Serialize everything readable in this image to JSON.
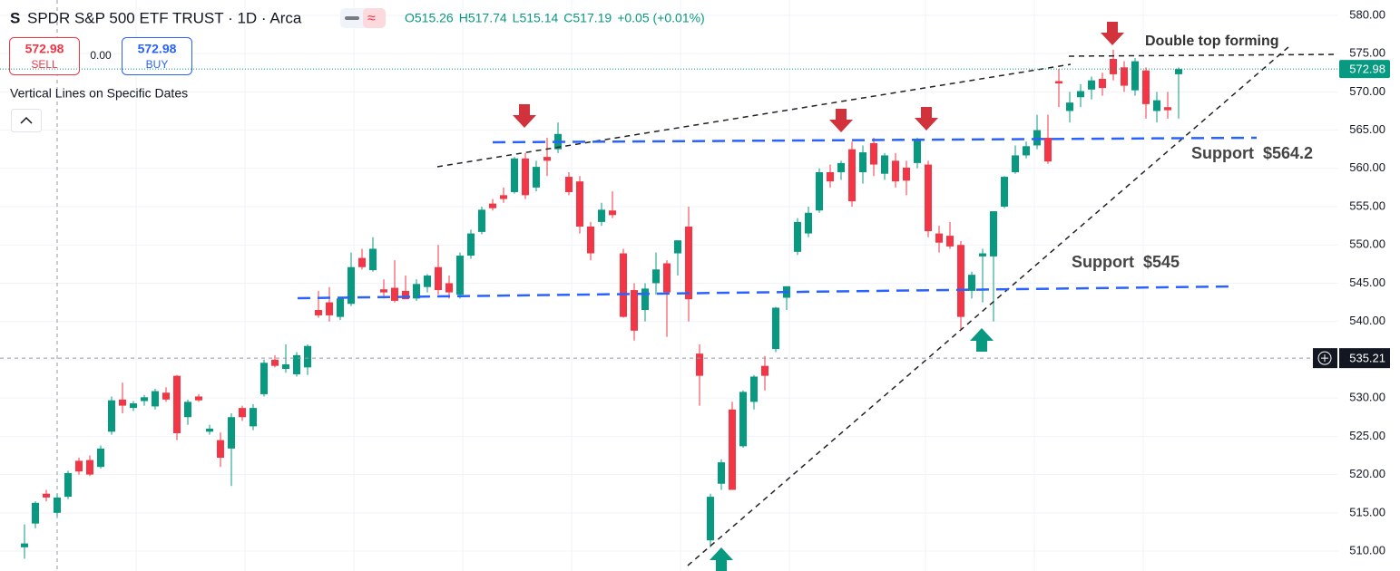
{
  "chart_data": {
    "type": "candlestick",
    "title": "SPDR S&P 500 ETF TRUST · 1D · Arca",
    "legend_values": [
      "O515.26",
      "H517.74",
      "L515.14",
      "C517.19",
      "+0.05 (+0.01%)"
    ],
    "up_color": "#089981",
    "down_color": "#f23645",
    "open": [
      510.5,
      513.6,
      517.5,
      515,
      517.1,
      521.8,
      521.9,
      521,
      525.6,
      529.8,
      528.7,
      529.6,
      528.9,
      530.7,
      532.9,
      527.5,
      530.2,
      525.6,
      524.5,
      523.4,
      528.7,
      526.3,
      530.5,
      535,
      533.8,
      533.1,
      534,
      541.5,
      542.5,
      540.6,
      542.3,
      548.3,
      546.7,
      544.2,
      544.4,
      544,
      543,
      544.5,
      547.1,
      545,
      543.5,
      548.6,
      551.7,
      555.4,
      556.5,
      556.9,
      561.3,
      557.5,
      561.5,
      562.5,
      558.9,
      558.3,
      552.4,
      553,
      554.5,
      548.9,
      544.1,
      541.5,
      545,
      547.6,
      548.9,
      552.4,
      535.8,
      511.4,
      518.8,
      528.5,
      523.7,
      529.5,
      534.2,
      536.4,
      543.1,
      549.1,
      551.5,
      554.5,
      559.5,
      559.5,
      562.5,
      559.5,
      563.3,
      559.3,
      561,
      560.1,
      560.7,
      560.5,
      551.5,
      551.2,
      550,
      544,
      548.5,
      548.5,
      555,
      559.5,
      561.7,
      563,
      564,
      571.4,
      567.5,
      569.3,
      570.3,
      571.7,
      574.3,
      573.2,
      570.2,
      572.8,
      567.5,
      568,
      572.3
    ],
    "high": [
      513.5,
      516.5,
      518,
      517.5,
      520.5,
      522.2,
      522.5,
      523.8,
      530.2,
      532,
      529.6,
      530.4,
      531.2,
      531.4,
      533,
      529.8,
      530.5,
      526.5,
      525.5,
      528,
      529,
      529.2,
      535,
      535.6,
      537,
      536,
      537,
      544,
      544.5,
      543.2,
      549,
      549.5,
      551,
      545.5,
      548,
      546,
      545.5,
      546.2,
      550,
      546,
      549,
      552,
      555,
      556,
      557.5,
      561.5,
      562,
      561,
      564,
      566,
      559.5,
      559,
      553,
      555.5,
      557,
      549.5,
      545,
      545,
      549,
      548,
      550.6,
      555,
      537,
      517.5,
      522,
      529.5,
      531,
      533,
      535.5,
      541.9,
      544.6,
      553.5,
      555,
      560,
      560.5,
      561,
      563.5,
      563,
      564,
      562,
      562,
      561,
      564,
      561,
      552.5,
      553,
      550.5,
      546.5,
      549.5,
      554.4,
      559,
      563,
      563.5,
      567,
      567,
      573,
      570,
      571,
      572,
      572.5,
      575.5,
      574,
      574.4,
      573.2,
      570,
      570,
      573.2
    ],
    "low": [
      509,
      513,
      516.5,
      514.5,
      516.8,
      520,
      519.8,
      520.8,
      525.2,
      528,
      528.3,
      529,
      528.5,
      529.5,
      524.5,
      526.5,
      529.5,
      525.2,
      521,
      518.5,
      527,
      525.8,
      530.2,
      534,
      533.3,
      532.8,
      533,
      540.5,
      540,
      540.2,
      542,
      546.8,
      546.5,
      543,
      542.5,
      543,
      542.7,
      543.8,
      543.5,
      543,
      543,
      548.2,
      551.4,
      554.5,
      555.5,
      556.7,
      556,
      557,
      559,
      562,
      556.5,
      551.5,
      548,
      552.5,
      553.5,
      540.5,
      537.5,
      540,
      543.5,
      538,
      546,
      540,
      529,
      510.5,
      518,
      518,
      523.5,
      528.5,
      531,
      536,
      541.5,
      548.7,
      551,
      554.2,
      557.5,
      558.5,
      555,
      558,
      559,
      558.5,
      557.5,
      556.5,
      560,
      551,
      549,
      549.5,
      539,
      543,
      542.5,
      540,
      554.8,
      559.3,
      561.3,
      562.5,
      560.6,
      568,
      566,
      568,
      569,
      569.5,
      571.5,
      570,
      569.5,
      566.5,
      566,
      566.5,
      566.5
    ],
    "close": [
      511,
      516.3,
      517,
      517,
      520.2,
      520.4,
      520,
      523.4,
      529.7,
      529,
      529.3,
      530.1,
      530.9,
      529.8,
      525.4,
      529.5,
      529.7,
      526,
      522.2,
      527.5,
      527.5,
      528.7,
      534.6,
      534.2,
      534.4,
      535.6,
      536.8,
      540.8,
      540.8,
      543,
      547.1,
      547.1,
      549.5,
      543.8,
      542.7,
      542.9,
      544.9,
      546,
      544.1,
      543.8,
      548.6,
      551.5,
      554.6,
      554.8,
      556,
      561.3,
      556.5,
      560.2,
      561,
      564.5,
      556.9,
      552.4,
      548.9,
      554.6,
      553.9,
      540.6,
      538.8,
      544.3,
      546.8,
      543.8,
      550.6,
      542.9,
      532.9,
      517.1,
      521.6,
      518,
      530.8,
      532.8,
      532.9,
      541.8,
      544.6,
      553,
      554.2,
      559.5,
      558.3,
      560.7,
      555.7,
      562.1,
      560.5,
      561.7,
      558.3,
      558.4,
      563.7,
      551.8,
      550.3,
      549.8,
      540.6,
      546.1,
      548.9,
      554.4,
      558.9,
      561.7,
      562.9,
      565,
      560.9,
      571.1,
      568.6,
      570.1,
      571.5,
      570.5,
      572.3,
      570.8,
      574,
      568.4,
      568.9,
      567.6,
      572.98
    ],
    "ylim": [
      507.4,
      582.0
    ],
    "yticks": [
      {
        "value": 510,
        "label": "510.00"
      },
      {
        "value": 515,
        "label": "515.00"
      },
      {
        "value": 520,
        "label": "520.00"
      },
      {
        "value": 525,
        "label": "525.00"
      },
      {
        "value": 530,
        "label": "530.00"
      },
      {
        "value": 535,
        "label": "535.00"
      },
      {
        "value": 540,
        "label": "540.00"
      },
      {
        "value": 545,
        "label": "545.00"
      },
      {
        "value": 550,
        "label": "550.00"
      },
      {
        "value": 555,
        "label": "555.00"
      },
      {
        "value": 560,
        "label": "560.00"
      },
      {
        "value": 565,
        "label": "565.00"
      },
      {
        "value": 570,
        "label": "570.00"
      },
      {
        "value": 575,
        "label": "575.00"
      },
      {
        "value": 580,
        "label": "580.00"
      }
    ],
    "grid": true,
    "last_price": 572.98,
    "crosshair_price": 535.21,
    "annotations": [
      "Double top forming",
      "Support  $564.2",
      "Support  $545"
    ]
  },
  "toolbar": {
    "sell": {
      "price": "572.98",
      "label": "SELL"
    },
    "spread": "0.00",
    "buy": {
      "price": "572.98",
      "label": "BUY"
    },
    "indicator": "Vertical Lines on Specific Dates"
  }
}
